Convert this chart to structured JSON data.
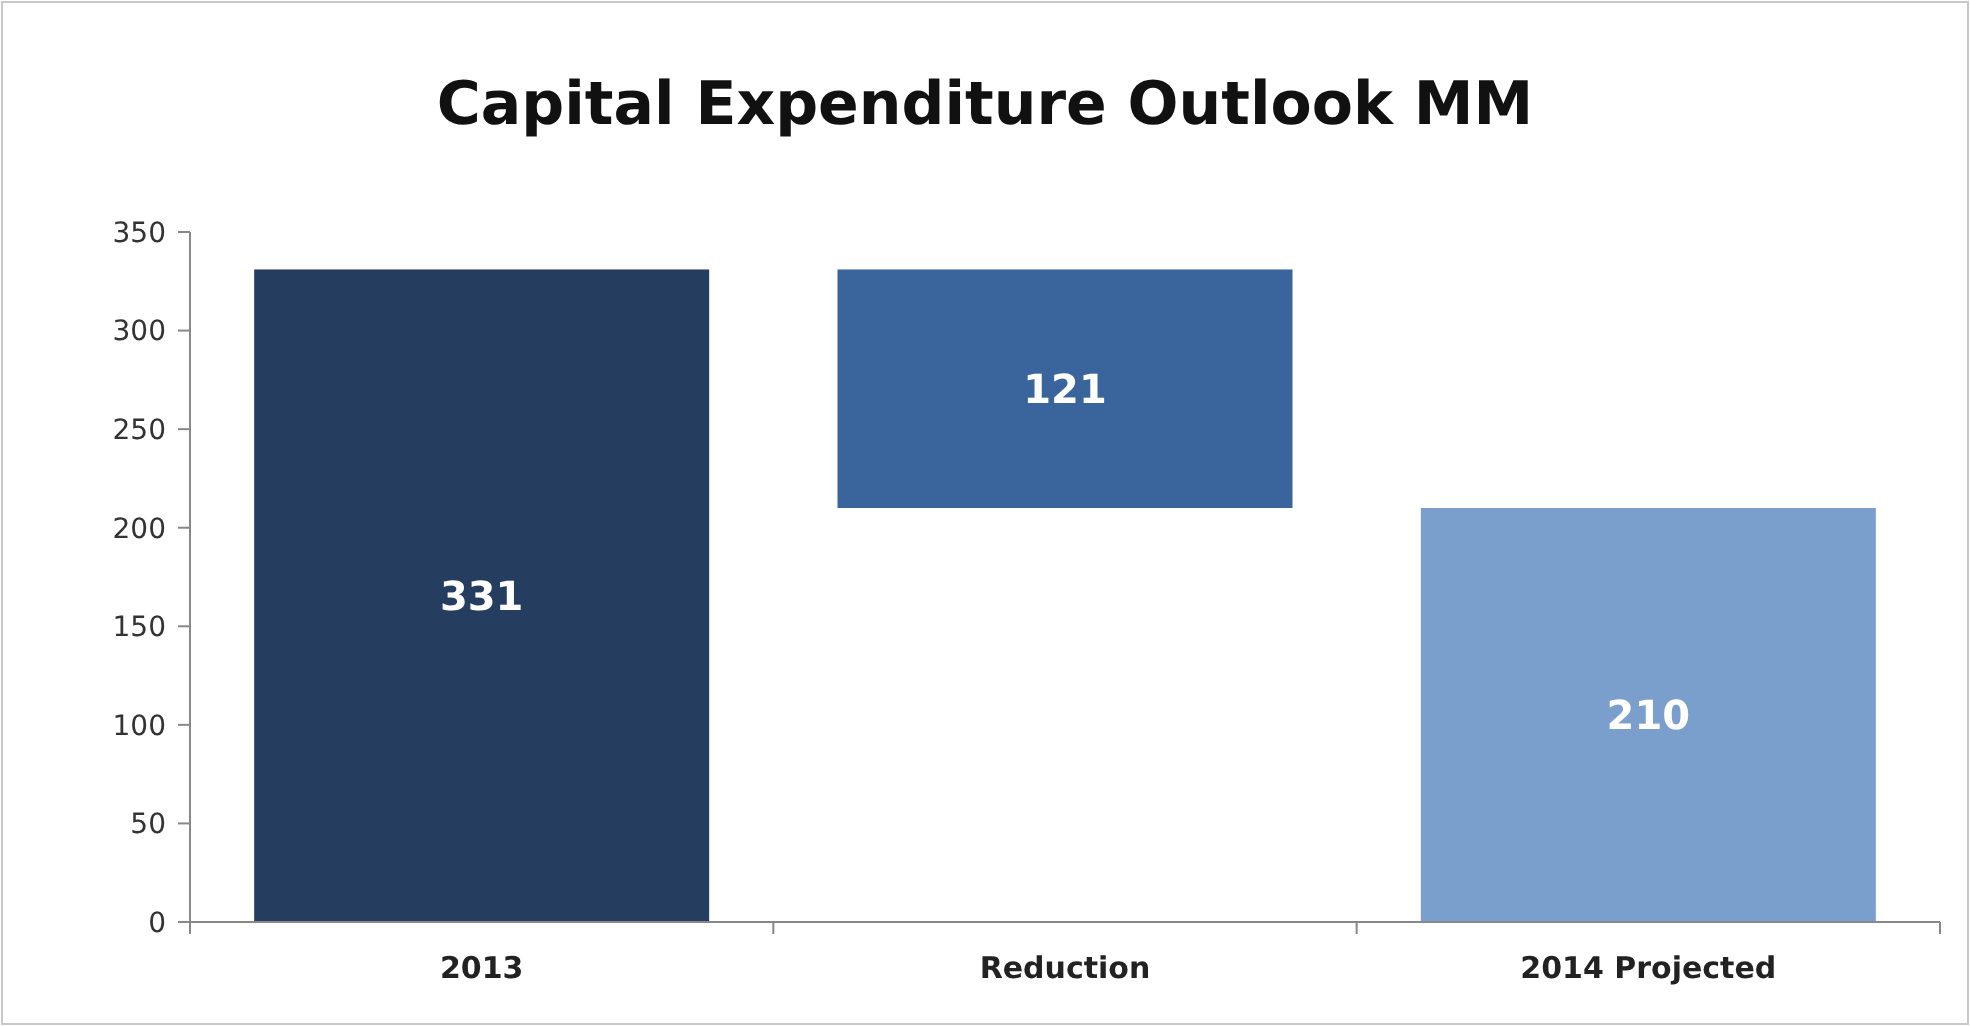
{
  "chart_data": {
    "type": "bar",
    "title": "Capital Expenditure Outlook MM",
    "categories": [
      "2013",
      "Reduction",
      "2014 Projected"
    ],
    "values": [
      331,
      121,
      210
    ],
    "base": [
      0,
      210,
      0
    ],
    "colors": [
      "#253d5f",
      "#3a659c",
      "#7b9fcd"
    ],
    "ylim": [
      0,
      350
    ],
    "yticks": [
      0,
      50,
      100,
      150,
      200,
      250,
      300,
      350
    ],
    "data_labels": true,
    "grid": false
  }
}
